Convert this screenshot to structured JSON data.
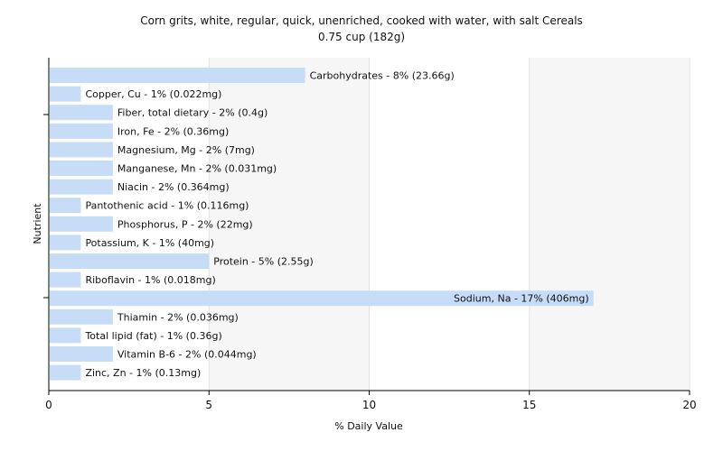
{
  "chart_data": {
    "type": "bar",
    "orientation": "horizontal",
    "title": "Corn grits, white, regular, quick, unenriched, cooked with water, with salt Cereals",
    "subtitle": "0.75 cup (182g)",
    "xlabel": "% Daily Value",
    "ylabel": "Nutrient",
    "xlim": [
      0,
      20
    ],
    "xticks": [
      0,
      5,
      10,
      15,
      20
    ],
    "grid": true,
    "legend": "none",
    "colors": {
      "bar": "#c6dcf7",
      "grid": "#e2e2e2",
      "axis": "#000000",
      "background_band": "#f6f6f6"
    },
    "categories": [
      "Carbohydrates",
      "Copper, Cu",
      "Fiber, total dietary",
      "Iron, Fe",
      "Magnesium, Mg",
      "Manganese, Mn",
      "Niacin",
      "Pantothenic acid",
      "Phosphorus, P",
      "Potassium, K",
      "Protein",
      "Riboflavin",
      "Sodium, Na",
      "Thiamin",
      "Total lipid (fat)",
      "Vitamin B-6",
      "Zinc, Zn"
    ],
    "values": [
      8,
      1,
      2,
      2,
      2,
      2,
      2,
      1,
      2,
      1,
      5,
      1,
      17,
      2,
      1,
      2,
      1
    ],
    "labels": [
      "Carbohydrates - 8% (23.66g)",
      "Copper, Cu - 1% (0.022mg)",
      "Fiber, total dietary - 2% (0.4g)",
      "Iron, Fe - 2% (0.36mg)",
      "Magnesium, Mg - 2% (7mg)",
      "Manganese, Mn - 2% (0.031mg)",
      "Niacin - 2% (0.364mg)",
      "Pantothenic acid - 1% (0.116mg)",
      "Phosphorus, P - 2% (22mg)",
      "Potassium, K - 1% (40mg)",
      "Protein - 5% (2.55g)",
      "Riboflavin - 1% (0.018mg)",
      "Sodium, Na - 17% (406mg)",
      "Thiamin - 2% (0.036mg)",
      "Total lipid (fat) - 1% (0.36g)",
      "Vitamin B-6 - 2% (0.044mg)",
      "Zinc, Zn - 1% (0.13mg)"
    ]
  }
}
